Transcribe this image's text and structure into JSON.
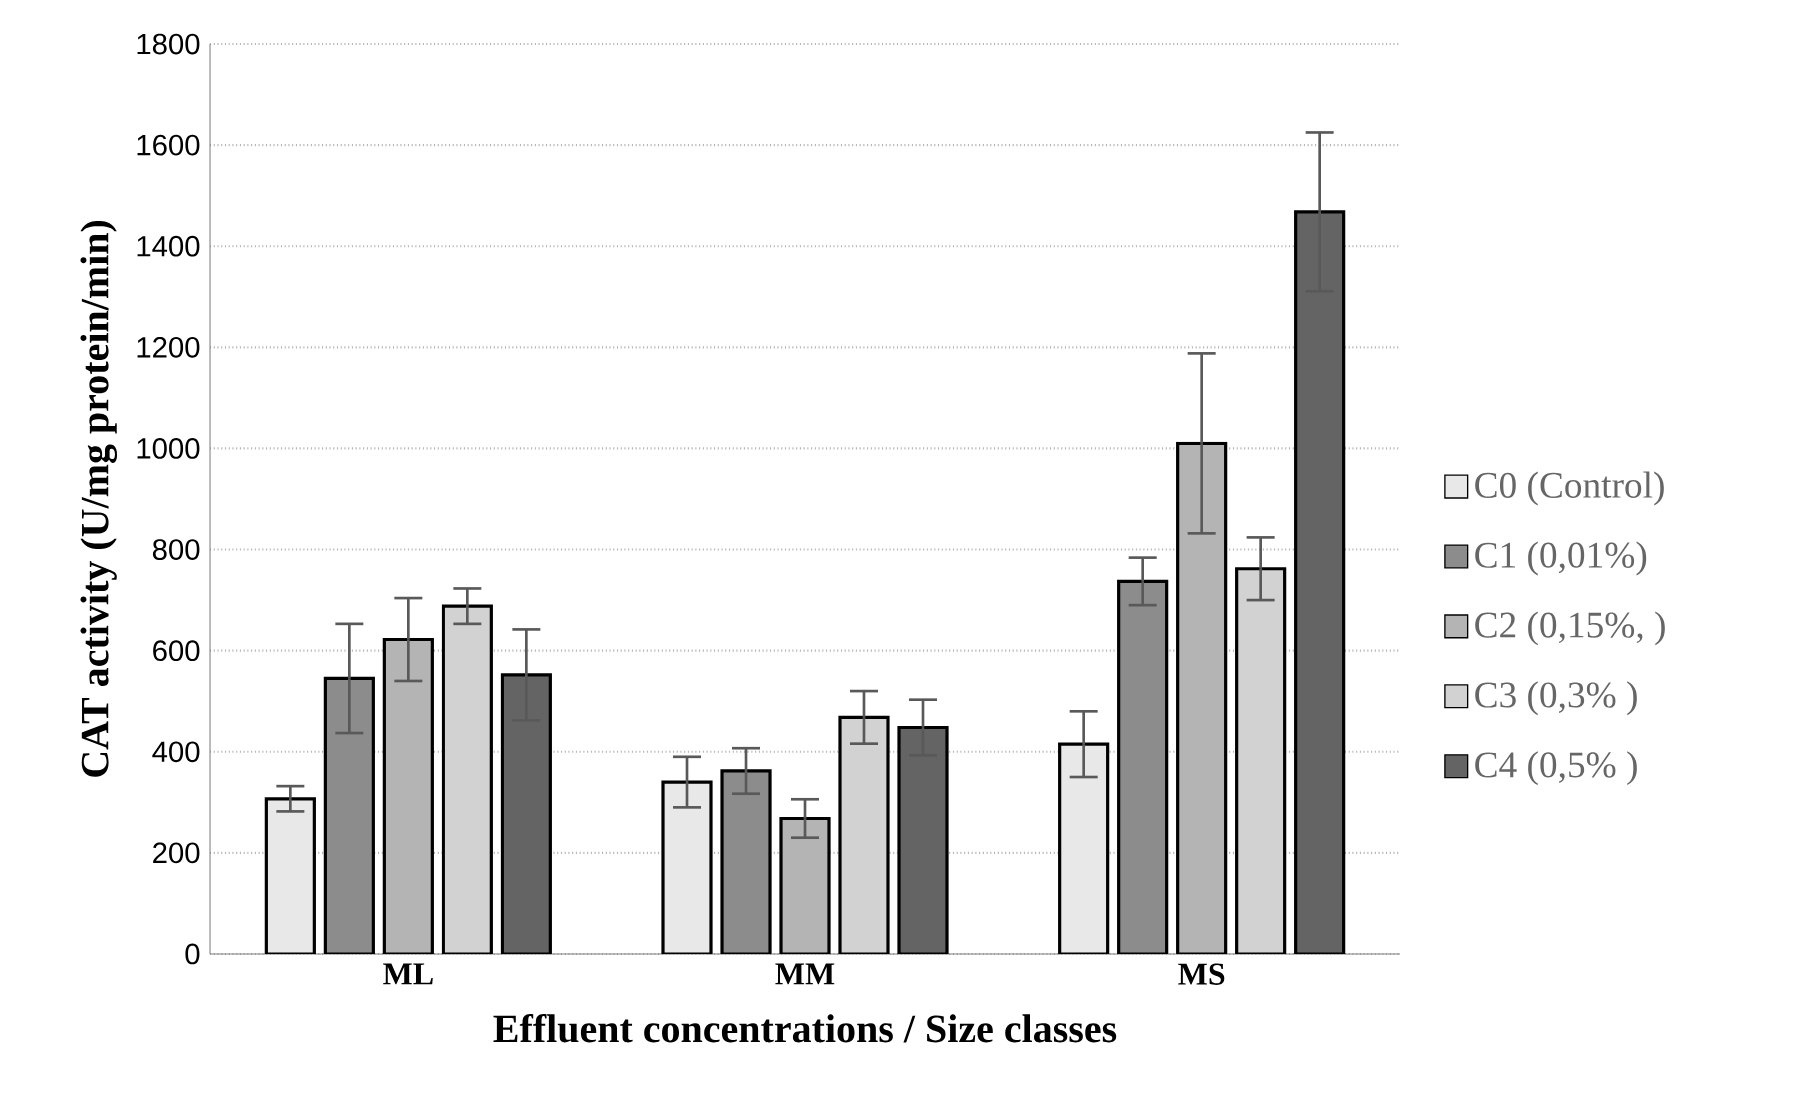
{
  "chart_data": {
    "type": "bar",
    "xlabel": "Effluent concentrations / Size classes",
    "ylabel": "CAT activity (U/mg protein/min)",
    "categories": [
      "ML",
      "MM",
      "MS"
    ],
    "series": [
      {
        "name": "C0 (Control)",
        "color": "#e8e8e8",
        "values": [
          307,
          340,
          415
        ],
        "errors": [
          25,
          50,
          65
        ]
      },
      {
        "name": "C1 (0,01%)",
        "color": "#8c8c8c",
        "values": [
          545,
          362,
          737
        ],
        "errors": [
          108,
          45,
          47
        ]
      },
      {
        "name": "C2 (0,15%, )",
        "color": "#b4b4b4",
        "values": [
          622,
          268,
          1010
        ],
        "errors": [
          82,
          38,
          178
        ]
      },
      {
        "name": "C3 (0,3% )",
        "color": "#d2d2d2",
        "values": [
          688,
          468,
          762
        ],
        "errors": [
          35,
          52,
          62
        ]
      },
      {
        "name": "C4 (0,5% )",
        "color": "#646464",
        "values": [
          552,
          448,
          1468
        ],
        "errors": [
          90,
          55,
          157
        ]
      }
    ],
    "ylim": [
      0,
      1800
    ],
    "yticks": [
      0,
      200,
      400,
      600,
      800,
      1000,
      1200,
      1400,
      1600,
      1800
    ],
    "grid": "y",
    "legend": "right"
  }
}
